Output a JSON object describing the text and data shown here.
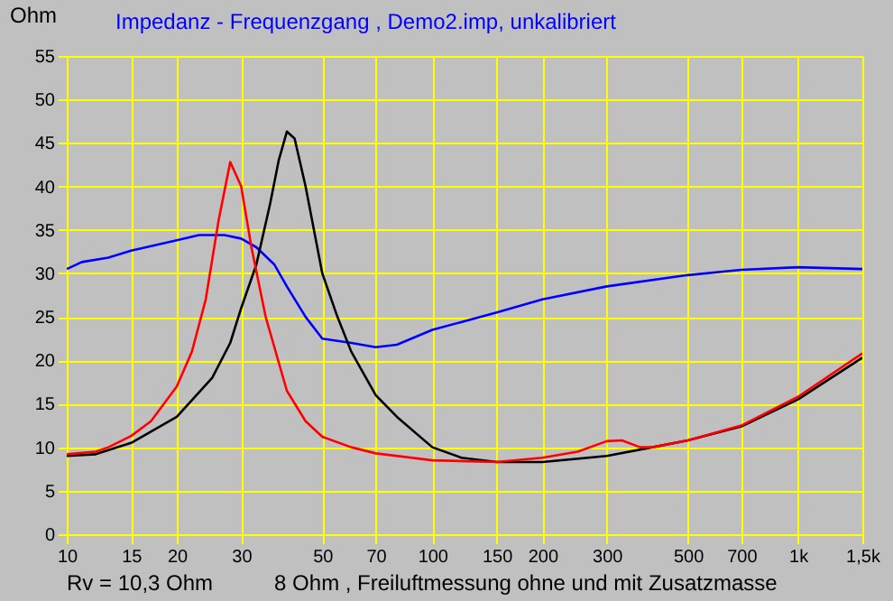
{
  "chart_data": {
    "type": "line",
    "title": "Impedanz - Frequenzgang , Demo2.imp, unkalibriert",
    "ylabel": "Ohm",
    "annotations": [
      "Rv = 10,3 Ohm",
      "8 Ohm , Freiluftmessung ohne und mit Zusatzmasse"
    ],
    "log": "x",
    "grid": true,
    "legend": false,
    "xlim": [
      10,
      1500
    ],
    "xticks": [
      10,
      15,
      20,
      30,
      50,
      70,
      100,
      150,
      200,
      300,
      500,
      700,
      {
        "value": 1000,
        "label": "1k"
      },
      {
        "value": 1500,
        "label": "1,5k"
      }
    ],
    "ylim": [
      0,
      55
    ],
    "yticks": [
      0,
      5,
      10,
      15,
      20,
      25,
      30,
      35,
      40,
      45,
      50,
      55
    ],
    "series": [
      {
        "color": "#0000ff",
        "x": [
          10,
          11,
          13,
          15,
          20,
          23,
          27,
          30,
          33,
          37,
          40,
          45,
          50,
          60,
          70,
          80,
          100,
          150,
          200,
          300,
          500,
          700,
          1000,
          1500
        ],
        "values": [
          30.5,
          31.3,
          31.8,
          32.6,
          33.8,
          34.4,
          34.4,
          34,
          33,
          31,
          28.5,
          25,
          22.5,
          22,
          21.5,
          21.8,
          23.5,
          25.5,
          27,
          28.5,
          29.8,
          30.4,
          30.7,
          30.5
        ]
      },
      {
        "color": "#000000",
        "x": [
          10,
          12,
          15,
          20,
          25,
          28,
          30,
          33,
          36,
          38,
          40,
          42,
          45,
          50,
          55,
          60,
          70,
          80,
          100,
          120,
          150,
          200,
          300,
          400,
          500,
          700,
          1000,
          1500
        ],
        "values": [
          9,
          9.2,
          10.5,
          13.5,
          18,
          22,
          26,
          31,
          38,
          43,
          46.3,
          45.5,
          40,
          30,
          25,
          21,
          16,
          13.5,
          10,
          8.8,
          8.3,
          8.3,
          9,
          10,
          10.8,
          12.4,
          15.5,
          20.3
        ]
      },
      {
        "color": "#ff0000",
        "x": [
          10,
          12,
          13,
          15,
          17,
          20,
          22,
          24,
          26,
          28,
          30,
          32,
          35,
          40,
          45,
          50,
          60,
          70,
          100,
          150,
          200,
          250,
          300,
          330,
          370,
          400,
          500,
          700,
          1000,
          1500
        ],
        "values": [
          9.2,
          9.5,
          10,
          11.3,
          13,
          17,
          21,
          27,
          36,
          42.8,
          40,
          33,
          25,
          16.5,
          13,
          11.2,
          10,
          9.3,
          8.5,
          8.3,
          8.8,
          9.5,
          10.7,
          10.8,
          10,
          10,
          10.8,
          12.5,
          15.8,
          20.8
        ]
      }
    ]
  }
}
